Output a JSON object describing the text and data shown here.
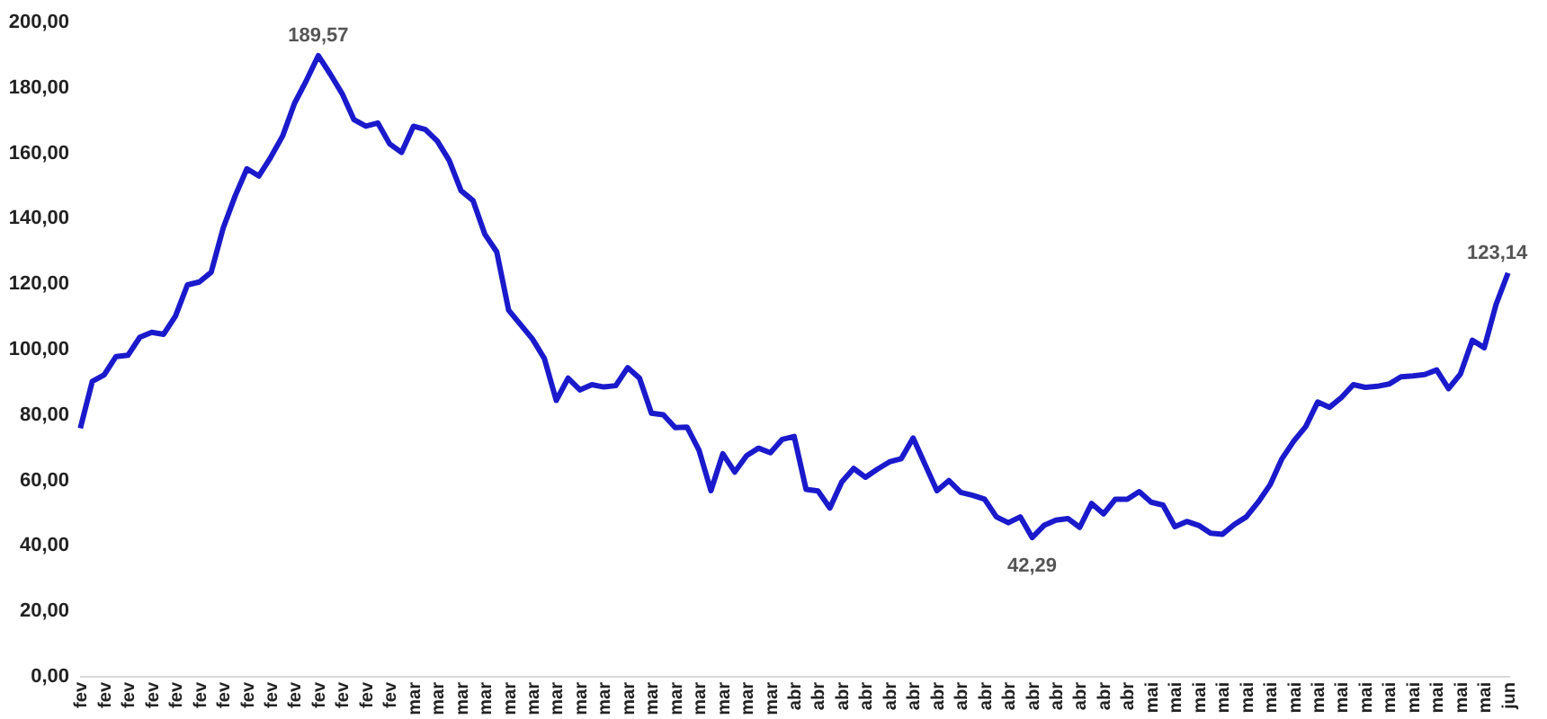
{
  "chart_data": {
    "type": "line",
    "categories": [
      "fev",
      null,
      "fev",
      null,
      "fev",
      null,
      "fev",
      null,
      "fev",
      null,
      "fev",
      null,
      "fev",
      null,
      "fev",
      null,
      "fev",
      null,
      "fev",
      null,
      "fev",
      null,
      "fev",
      null,
      "fev",
      null,
      "fev",
      null,
      "mar",
      null,
      "mar",
      null,
      "mar",
      null,
      "mar",
      null,
      "mar",
      null,
      "mar",
      null,
      "mar",
      null,
      "mar",
      null,
      "mar",
      null,
      "mar",
      null,
      "mar",
      null,
      "mar",
      null,
      "mar",
      null,
      "mar",
      null,
      "mar",
      null,
      "mar",
      null,
      "abr",
      null,
      "abr",
      null,
      "abr",
      null,
      "abr",
      null,
      "abr",
      null,
      "abr",
      null,
      "abr",
      null,
      "abr",
      null,
      "abr",
      null,
      "abr",
      null,
      "abr",
      null,
      "abr",
      null,
      "abr",
      null,
      "abr",
      null,
      "abr",
      null,
      "mai",
      null,
      "mai",
      null,
      "mai",
      null,
      "mai",
      null,
      "mai",
      null,
      "mai",
      null,
      "mai",
      null,
      "mai",
      null,
      "mai",
      null,
      "mai",
      null,
      "mai",
      null,
      "mai",
      null,
      "mai",
      null,
      "mai",
      null,
      "mai",
      null,
      "jun"
    ],
    "series": [
      {
        "color": "#1a1acc",
        "values": [
          75.7,
          90,
          92,
          97.6,
          98,
          103.5,
          105,
          104.4,
          110,
          119.5,
          120.4,
          123.4,
          136.8,
          146.6,
          155,
          152.8,
          158.5,
          165,
          175,
          182,
          189.57,
          184,
          178,
          170,
          168,
          169,
          162.6,
          160,
          168,
          167,
          163.5,
          157.6,
          148.3,
          145.3,
          135,
          129.6,
          111.8,
          107.4,
          103,
          97,
          84.2,
          91,
          87.4,
          89,
          88.3,
          88.7,
          94.2,
          91,
          80.3,
          79.8,
          75.9,
          76,
          69,
          56.6,
          67.9,
          62.3,
          67.3,
          69.6,
          68.2,
          72.3,
          73.2,
          57,
          56.5,
          51.3,
          59.3,
          63.4,
          60.7,
          63.2,
          65.4,
          66.4,
          72.7,
          64.6,
          56.6,
          59.7,
          56.1,
          55.2,
          54,
          48.6,
          46.8,
          48.6,
          42.29,
          46,
          47.6,
          48.1,
          45.4,
          52.7,
          49.5,
          54,
          54,
          56.3,
          53.1,
          52.2,
          45.6,
          47.2,
          46,
          43.6,
          43.3,
          46.3,
          48.6,
          53.1,
          58.4,
          66.4,
          71.8,
          76.2,
          83.7,
          82.1,
          85.1,
          89,
          88.2,
          88.5,
          89.2,
          91.4,
          91.7,
          92.1,
          93.5,
          87.8,
          92.3,
          102.6,
          100.3,
          113.6,
          123.14
        ],
        "value_labels": [
          null,
          null,
          null,
          null,
          null,
          null,
          null,
          null,
          null,
          null,
          null,
          null,
          null,
          null,
          null,
          null,
          null,
          null,
          null,
          null,
          "189,57",
          null,
          null,
          null,
          null,
          null,
          null,
          null,
          null,
          null,
          null,
          null,
          null,
          null,
          null,
          null,
          null,
          null,
          null,
          null,
          null,
          null,
          null,
          null,
          null,
          null,
          null,
          null,
          null,
          null,
          null,
          null,
          null,
          null,
          null,
          null,
          null,
          null,
          null,
          null,
          null,
          null,
          null,
          null,
          null,
          null,
          null,
          null,
          null,
          null,
          null,
          null,
          null,
          null,
          null,
          null,
          null,
          null,
          null,
          null,
          "42,29",
          null,
          null,
          null,
          null,
          null,
          null,
          null,
          null,
          null,
          null,
          null,
          null,
          null,
          null,
          null,
          null,
          null,
          null,
          null,
          null,
          null,
          null,
          null,
          null,
          null,
          null,
          null,
          null,
          null,
          null,
          null,
          null,
          null,
          null,
          null,
          null,
          null,
          null,
          null,
          "123,14"
        ]
      }
    ],
    "ylim": [
      0,
      200
    ],
    "yticks": [
      {
        "value": 0,
        "label": "0,00"
      },
      {
        "value": 20,
        "label": "20,00"
      },
      {
        "value": 40,
        "label": "40,00"
      },
      {
        "value": 60,
        "label": "60,00"
      },
      {
        "value": 80,
        "label": "80,00"
      },
      {
        "value": 100,
        "label": "100,00"
      },
      {
        "value": 120,
        "label": "120,00"
      },
      {
        "value": 140,
        "label": "140,00"
      },
      {
        "value": 160,
        "label": "160,00"
      },
      {
        "value": 180,
        "label": "180,00"
      },
      {
        "value": 200,
        "label": "200,00"
      }
    ]
  }
}
